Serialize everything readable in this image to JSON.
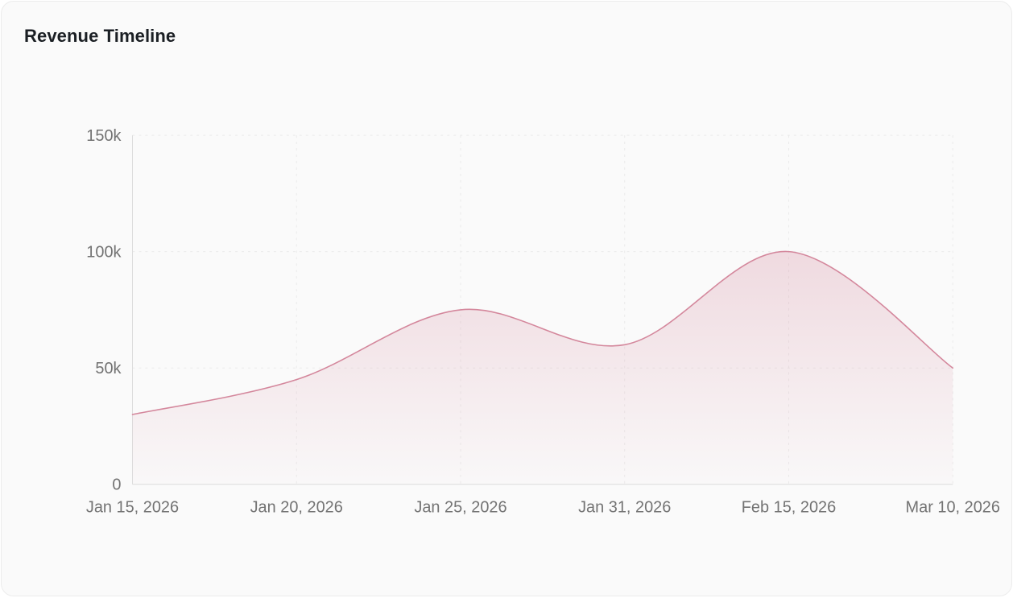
{
  "card": {
    "title": "Revenue Timeline"
  },
  "chart_data": {
    "type": "area",
    "title": "Revenue Timeline",
    "categories": [
      "Jan 15, 2026",
      "Jan 20, 2026",
      "Jan 25, 2026",
      "Jan 31, 2026",
      "Feb 15, 2026",
      "Mar 10, 2026"
    ],
    "values": [
      30000,
      45000,
      75000,
      60000,
      100000,
      50000
    ],
    "xlabel": "",
    "ylabel": "",
    "ylim": [
      0,
      150000
    ],
    "yticks": [
      0,
      50000,
      100000,
      150000
    ],
    "ytick_labels": [
      "0",
      "50k",
      "100k",
      "150k"
    ],
    "grid": true,
    "grid_style": "dashed",
    "legend": false,
    "smooth": true,
    "line_color": "#d4879c",
    "fill_color": "#d4879c",
    "tick_label_color": "#737373",
    "grid_color": "#ebebeb",
    "axis_color": "#dcdcdc"
  }
}
